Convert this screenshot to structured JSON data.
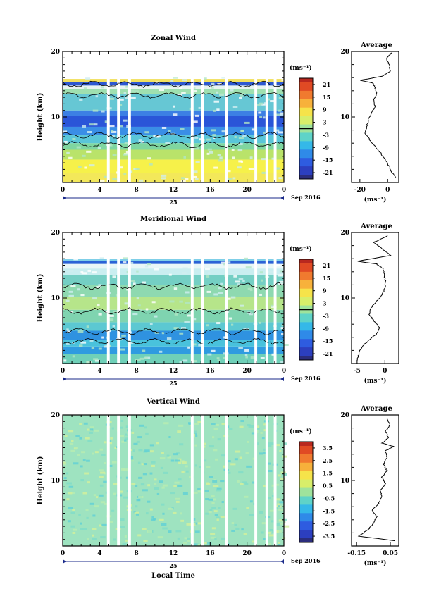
{
  "chart_data": [
    {
      "type": "heatmap",
      "title": "Zonal Wind",
      "ylabel": "Height (km)",
      "y_ticks": [
        "20",
        "10"
      ],
      "ylim": [
        0,
        20
      ],
      "x_ticks": [
        "0",
        "4",
        "8",
        "12",
        "16",
        "20",
        "0"
      ],
      "xlim": [
        0,
        24
      ],
      "date_label": "25",
      "month_label": "Sep 2016",
      "unit_label": "(ms⁻¹)",
      "colorbar": {
        "ticks": [
          "21",
          "15",
          "9",
          "3",
          "-3",
          "-9",
          "-15",
          "-21"
        ],
        "range": [
          -24,
          24
        ],
        "zero_line": true
      },
      "average": {
        "title": "Average",
        "x_ticks": [
          "-20",
          "0"
        ],
        "xlim": [
          -26,
          8
        ],
        "unit_label": "(ms⁻¹)",
        "profile": {
          "height": [
            0.8,
            1.5,
            2.5,
            3.5,
            4.5,
            5.5,
            6.5,
            7.5,
            8.5,
            9.5,
            10.5,
            11.5,
            12.5,
            13.5,
            14.5,
            15.2,
            15.6,
            16.2,
            17,
            18,
            19,
            19.8
          ],
          "value": [
            6,
            3,
            1,
            -2,
            -5,
            -9,
            -13,
            -16,
            -15,
            -14,
            -12,
            -9,
            -10,
            -8,
            -9,
            -11,
            -20,
            -4,
            2,
            1,
            -1,
            3
          ]
        }
      },
      "gaps": [
        [
          4.8,
          5.1
        ],
        [
          5.9,
          6.2
        ],
        [
          7.1,
          7.4
        ],
        [
          13.9,
          14.2
        ],
        [
          15.0,
          15.3
        ],
        [
          17.6,
          17.9
        ],
        [
          20.8,
          21.1
        ],
        [
          22.0,
          22.3
        ],
        [
          22.9,
          23.2
        ]
      ],
      "bands": [
        {
          "y": [
            0,
            1.5
          ],
          "color": "#f3e85a"
        },
        {
          "y": [
            1.5,
            3.5
          ],
          "color": "#f6f14a"
        },
        {
          "y": [
            3.5,
            5.0
          ],
          "color": "#b9e36a"
        },
        {
          "y": [
            5.0,
            6.0
          ],
          "color": "#7fd6a0"
        },
        {
          "y": [
            6.0,
            7.2
          ],
          "color": "#5ac6d8"
        },
        {
          "y": [
            7.2,
            8.5
          ],
          "color": "#3a8ee6"
        },
        {
          "y": [
            8.5,
            10.2
          ],
          "color": "#2a55d8"
        },
        {
          "y": [
            10.2,
            11.0
          ],
          "color": "#3c7fe4"
        },
        {
          "y": [
            11.0,
            13.5
          ],
          "color": "#66c7d4"
        },
        {
          "y": [
            13.5,
            14.2
          ],
          "color": "#9fe0b0"
        },
        {
          "y": [
            14.2,
            14.8
          ],
          "color": "#e8f4f0"
        },
        {
          "y": [
            14.8,
            15.3
          ],
          "color": "#2d58d0"
        },
        {
          "y": [
            15.3,
            15.8
          ],
          "color": "#f1e060"
        }
      ],
      "contour_heights": [
        7.2,
        5.8,
        13.3,
        15.0
      ]
    },
    {
      "type": "heatmap",
      "title": "Meridional Wind",
      "ylabel": "Height (km)",
      "y_ticks": [
        "20",
        "10"
      ],
      "ylim": [
        0,
        20
      ],
      "x_ticks": [
        "0",
        "4",
        "8",
        "12",
        "16",
        "20",
        "0"
      ],
      "xlim": [
        0,
        24
      ],
      "date_label": "25",
      "month_label": "Sep 2016",
      "unit_label": "(ms⁻¹)",
      "colorbar": {
        "ticks": [
          "21",
          "15",
          "9",
          "3",
          "-3",
          "-9",
          "-15",
          "-21"
        ],
        "range": [
          -24,
          24
        ],
        "zero_line": true
      },
      "average": {
        "title": "Average",
        "x_ticks": [
          "-5",
          "0"
        ],
        "xlim": [
          -6,
          2.5
        ],
        "unit_label": "(ms⁻¹)",
        "profile": {
          "height": [
            0.5,
            1.5,
            2.5,
            3.5,
            4.5,
            5.5,
            6.5,
            7.5,
            8.5,
            9.5,
            10.5,
            11.5,
            12.5,
            13.5,
            14.5,
            15.2,
            15.6,
            16.5,
            17.5,
            18.5,
            19.5
          ],
          "value": [
            -5,
            -4.7,
            -4.2,
            -3,
            -1.5,
            -1,
            -2,
            -2.8,
            -2.5,
            -1.5,
            -0.5,
            0,
            0.1,
            -0.1,
            -0.4,
            -1.5,
            -5,
            1,
            -0.5,
            -2,
            0.5
          ]
        }
      },
      "gaps": [
        [
          4.8,
          5.1
        ],
        [
          5.9,
          6.2
        ],
        [
          7.1,
          7.4
        ],
        [
          13.9,
          14.2
        ],
        [
          15.0,
          15.3
        ],
        [
          17.6,
          17.9
        ],
        [
          20.8,
          21.1
        ],
        [
          22.0,
          22.3
        ],
        [
          22.9,
          23.2
        ]
      ],
      "bands": [
        {
          "y": [
            0,
            1.5
          ],
          "color": "#6fd0b8"
        },
        {
          "y": [
            1.5,
            2.6
          ],
          "color": "#2f9be0"
        },
        {
          "y": [
            2.6,
            3.6
          ],
          "color": "#49c2dc"
        },
        {
          "y": [
            3.6,
            5.0
          ],
          "color": "#2f92e0"
        },
        {
          "y": [
            5.0,
            6.3
          ],
          "color": "#5cc8d2"
        },
        {
          "y": [
            6.3,
            8.2
          ],
          "color": "#7fd4b0"
        },
        {
          "y": [
            8.2,
            10.2
          ],
          "color": "#b6e58a"
        },
        {
          "y": [
            10.2,
            12.0
          ],
          "color": "#8ed9b0"
        },
        {
          "y": [
            12.0,
            13.5
          ],
          "color": "#74cfc4"
        },
        {
          "y": [
            13.5,
            14.5
          ],
          "color": "#c9eef0"
        },
        {
          "y": [
            14.5,
            15.2
          ],
          "color": "#e9f7f7"
        },
        {
          "y": [
            15.2,
            15.6
          ],
          "color": "#2b63d6"
        },
        {
          "y": [
            15.6,
            16.0
          ],
          "color": "#7fcfe8"
        }
      ],
      "contour_heights": [
        3.4,
        4.9,
        8.0,
        11.8
      ]
    },
    {
      "type": "heatmap",
      "title": "Vertical Wind",
      "ylabel": "Height (km)",
      "y_ticks": [
        "20",
        "10"
      ],
      "ylim": [
        0,
        20
      ],
      "x_ticks": [
        "0",
        "4",
        "8",
        "12",
        "16",
        "20",
        "0"
      ],
      "xlim": [
        0,
        24
      ],
      "date_label": "25",
      "month_label": "Sep 2016",
      "xlabel": "Local Time",
      "unit_label": "(ms⁻¹)",
      "colorbar": {
        "ticks": [
          "3.5",
          "2.5",
          "1.5",
          "0.5",
          "-0.5",
          "-1.5",
          "-2.5",
          "-3.5"
        ],
        "range": [
          -4,
          4
        ],
        "zero_line": false
      },
      "average": {
        "title": "Average",
        "x_ticks": [
          "-0.15",
          "0.05"
        ],
        "xlim": [
          -0.18,
          0.1
        ],
        "unit_label": "(ms⁻¹)",
        "profile": {
          "height": [
            0.8,
            1.5,
            2.5,
            3.5,
            4.5,
            5.5,
            6.5,
            7.5,
            8.5,
            9.5,
            10.5,
            11.5,
            12.5,
            13.5,
            14.5,
            15.2,
            15.7,
            16.5,
            17.5,
            18.5,
            19.5
          ],
          "value": [
            0.08,
            -0.14,
            -0.08,
            -0.05,
            -0.03,
            -0.06,
            -0.02,
            0.0,
            -0.01,
            0.02,
            0.0,
            0.03,
            0.01,
            0.03,
            0.02,
            0.07,
            0.0,
            0.04,
            0.02,
            0.05,
            0.03
          ]
        }
      },
      "gaps": [
        [
          4.8,
          5.1
        ],
        [
          5.9,
          6.2
        ],
        [
          7.1,
          7.4
        ],
        [
          13.9,
          14.2
        ],
        [
          15.0,
          15.3
        ],
        [
          17.6,
          17.9
        ],
        [
          20.8,
          21.1
        ],
        [
          22.0,
          22.3
        ],
        [
          22.9,
          23.2
        ]
      ],
      "bands": [
        {
          "y": [
            0,
            20
          ],
          "color": "#9ee3c0"
        }
      ],
      "contour_heights": []
    }
  ]
}
